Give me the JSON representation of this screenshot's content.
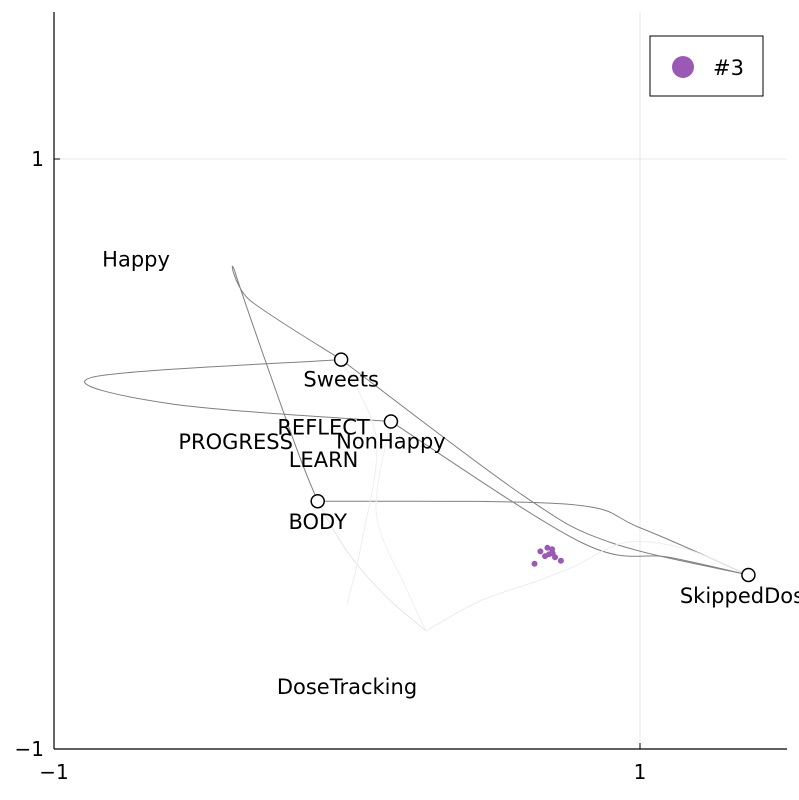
{
  "chart_data": {
    "type": "scatter",
    "xlim": [
      -1,
      1.5
    ],
    "ylim": [
      -1,
      1.5
    ],
    "xticks": [
      {
        "v": -1,
        "label": "−1"
      },
      {
        "v": 1,
        "label": "1"
      }
    ],
    "yticks": [
      {
        "v": -1,
        "label": "−1"
      },
      {
        "v": 1,
        "label": "1"
      }
    ],
    "grid": true,
    "legend": {
      "position": "top-right",
      "label": "#3",
      "color": "#9b59b6"
    },
    "nodes": [
      {
        "label": "Happy",
        "x": -0.72,
        "y": 0.66,
        "marker": false,
        "label_dx": 0,
        "label_dy": 0
      },
      {
        "label": "Sweets",
        "x": -0.02,
        "y": 0.32,
        "marker": true,
        "label_dx": 0,
        "label_dy": 20
      },
      {
        "label": "REFLECT",
        "x": -0.08,
        "y": 0.09,
        "marker": false,
        "label_dx": 0,
        "label_dy": 0
      },
      {
        "label": "PROGRESS",
        "x": -0.38,
        "y": 0.04,
        "marker": false,
        "label_dx": 0,
        "label_dy": 0
      },
      {
        "label": "NonHappy",
        "x": 0.15,
        "y": 0.11,
        "marker": true,
        "label_dx": 0,
        "label_dy": 20
      },
      {
        "label": "LEARN",
        "x": -0.08,
        "y": -0.02,
        "marker": false,
        "label_dx": 0,
        "label_dy": 0
      },
      {
        "label": "BODY",
        "x": -0.1,
        "y": -0.16,
        "marker": true,
        "label_dx": 0,
        "label_dy": 21
      },
      {
        "label": "SkippedDose",
        "x": 1.37,
        "y": -0.41,
        "marker": true,
        "label_dx": 0,
        "label_dy": 21
      },
      {
        "label": "DoseTracking",
        "x": 0.0,
        "y": -0.79,
        "marker": false,
        "label_dx": 0,
        "label_dy": 0
      }
    ],
    "edges": [
      {
        "path": [
          [
            -0.02,
            0.32
          ],
          [
            -0.33,
            0.52
          ],
          [
            -0.38,
            0.61
          ],
          [
            -0.18,
            0.04
          ],
          [
            -0.1,
            -0.16
          ]
        ],
        "color": "#808080"
      },
      {
        "path": [
          [
            -0.02,
            0.32
          ],
          [
            -0.87,
            0.26
          ],
          [
            -0.6,
            0.17
          ],
          [
            0.15,
            0.11
          ]
        ],
        "color": "#808080"
      },
      {
        "path": [
          [
            -0.1,
            -0.16
          ],
          [
            0.75,
            -0.17
          ],
          [
            1.0,
            -0.25
          ],
          [
            1.37,
            -0.41
          ]
        ],
        "color": "#808080"
      },
      {
        "path": [
          [
            -0.02,
            0.32
          ],
          [
            0.6,
            -0.14
          ],
          [
            0.9,
            -0.3
          ],
          [
            1.37,
            -0.41
          ]
        ],
        "color": "#808080"
      },
      {
        "path": [
          [
            0.15,
            0.11
          ],
          [
            0.8,
            -0.3
          ],
          [
            1.1,
            -0.35
          ],
          [
            1.37,
            -0.41
          ]
        ],
        "color": "#808080"
      },
      {
        "path": [
          [
            -0.1,
            -0.16
          ],
          [
            0.0,
            -0.33
          ],
          [
            0.13,
            -0.48
          ],
          [
            0.27,
            -0.6
          ]
        ],
        "color": "#e6e6e6"
      },
      {
        "path": [
          [
            0.27,
            -0.6
          ],
          [
            0.45,
            -0.5
          ],
          [
            0.65,
            -0.43
          ],
          [
            0.78,
            -0.38
          ]
        ],
        "color": "#ececec"
      },
      {
        "path": [
          [
            -0.02,
            0.32
          ],
          [
            0.1,
            0.05
          ],
          [
            0.05,
            -0.3
          ],
          [
            0.0,
            -0.51
          ]
        ],
        "color": "#eeeeee"
      },
      {
        "path": [
          [
            0.15,
            0.11
          ],
          [
            0.1,
            -0.2
          ],
          [
            0.2,
            -0.45
          ],
          [
            0.27,
            -0.6
          ]
        ],
        "color": "#f0f0f0"
      },
      {
        "path": [
          [
            0.78,
            -0.38
          ],
          [
            0.95,
            -0.3
          ],
          [
            1.15,
            -0.32
          ],
          [
            1.37,
            -0.41
          ]
        ],
        "color": "#eeeeee"
      }
    ],
    "points": [
      {
        "x": 0.66,
        "y": -0.33
      },
      {
        "x": 0.684,
        "y": -0.318
      },
      {
        "x": 0.7,
        "y": -0.323
      },
      {
        "x": 0.702,
        "y": -0.337
      },
      {
        "x": 0.69,
        "y": -0.34
      },
      {
        "x": 0.71,
        "y": -0.35
      },
      {
        "x": 0.64,
        "y": -0.372
      },
      {
        "x": 0.73,
        "y": -0.362
      },
      {
        "x": 0.676,
        "y": -0.346
      }
    ]
  }
}
